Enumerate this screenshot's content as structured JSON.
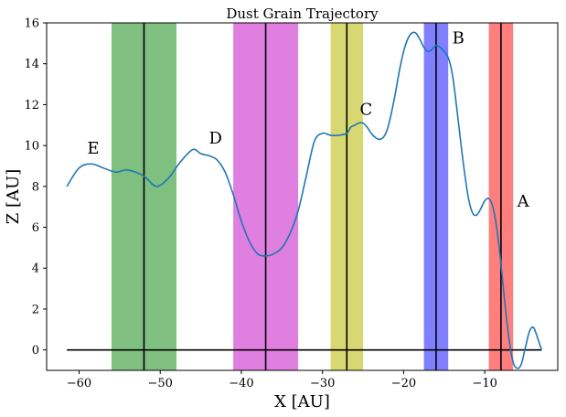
{
  "chart_data": {
    "type": "line",
    "title": "Dust Grain Trajectory",
    "xlabel": "X [AU]",
    "ylabel": "Z [AU]",
    "xlim": [
      -64,
      -1
    ],
    "ylim": [
      -1,
      16
    ],
    "xticks": [
      -60,
      -50,
      -40,
      -30,
      -20,
      -10
    ],
    "yticks": [
      0,
      2,
      4,
      6,
      8,
      10,
      12,
      14,
      16
    ],
    "grid": false,
    "bands": [
      {
        "id": "E-band",
        "x0": -56,
        "x1": -48,
        "color": "#008000",
        "opacity": 0.5
      },
      {
        "id": "D-band",
        "x0": -41,
        "x1": -33,
        "color": "#c000c0",
        "opacity": 0.5
      },
      {
        "id": "C-band",
        "x0": -29,
        "x1": -25,
        "color": "#b8b800",
        "opacity": 0.55
      },
      {
        "id": "B-band",
        "x0": -17.5,
        "x1": -14.5,
        "color": "#0000ff",
        "opacity": 0.5
      },
      {
        "id": "A-band",
        "x0": -9.5,
        "x1": -6.5,
        "color": "#ff0000",
        "opacity": 0.5
      }
    ],
    "vlines": [
      -52,
      -37,
      -27,
      -16,
      -8
    ],
    "hline": {
      "y": 0,
      "x0": -61.5,
      "x1": -3
    },
    "series": [
      {
        "color": "#1f77b4",
        "x": [
          -61.5,
          -60,
          -58.5,
          -57,
          -55.5,
          -54,
          -52,
          -50.5,
          -49,
          -47.5,
          -46,
          -45,
          -44,
          -43,
          -42,
          -41,
          -40,
          -39,
          -38,
          -37,
          -36,
          -35,
          -34,
          -33,
          -32,
          -31,
          -30,
          -29,
          -28,
          -27,
          -26.5,
          -26,
          -25.5,
          -25,
          -24.5,
          -24,
          -23.5,
          -23,
          -22.5,
          -22,
          -21.5,
          -21,
          -20.5,
          -20,
          -19.5,
          -19,
          -18.5,
          -18,
          -17.5,
          -17,
          -16.5,
          -16,
          -15.5,
          -15,
          -14.5,
          -14,
          -13.5,
          -13,
          -12.5,
          -12,
          -11.5,
          -11,
          -10.5,
          -10,
          -9.5,
          -9,
          -8.5,
          -8,
          -7.5,
          -7,
          -6.5,
          -6,
          -5.5,
          -5,
          -4.5,
          -4,
          -3.5,
          -3
        ],
        "y": [
          8.0,
          8.9,
          9.1,
          8.9,
          8.7,
          8.8,
          8.5,
          8.0,
          8.4,
          9.2,
          9.8,
          9.6,
          9.5,
          9.3,
          8.7,
          7.6,
          6.3,
          5.3,
          4.7,
          4.6,
          4.7,
          5.0,
          5.7,
          6.8,
          8.5,
          10.2,
          10.6,
          10.5,
          10.5,
          10.6,
          10.9,
          11.0,
          11.1,
          11.1,
          10.9,
          10.6,
          10.4,
          10.3,
          10.4,
          10.8,
          11.6,
          12.6,
          13.7,
          14.6,
          15.2,
          15.5,
          15.5,
          15.2,
          14.8,
          14.6,
          14.7,
          14.9,
          14.8,
          14.6,
          14.3,
          13.5,
          12.0,
          10.3,
          8.7,
          7.4,
          6.7,
          6.6,
          6.9,
          7.3,
          7.4,
          7.0,
          5.9,
          4.2,
          2.2,
          0.5,
          -0.6,
          -0.9,
          -0.7,
          0.1,
          0.9,
          1.1,
          0.6,
          0.0
        ]
      }
    ],
    "annotations": [
      {
        "text": "A",
        "x": -6,
        "y": 7.0
      },
      {
        "text": "B",
        "x": -14,
        "y": 15.0
      },
      {
        "text": "C",
        "x": -25.4,
        "y": 11.5
      },
      {
        "text": "D",
        "x": -44,
        "y": 10.1
      },
      {
        "text": "E",
        "x": -59,
        "y": 9.6
      }
    ]
  }
}
